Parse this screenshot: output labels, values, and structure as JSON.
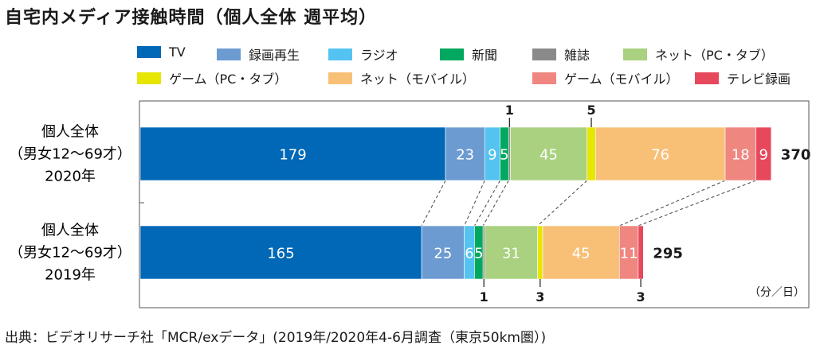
{
  "title": "自宅内メディア接触時間（個人全体 週平均）",
  "unit": "（分／日）",
  "source": "出典：ビデオリサーチ社「MCR/exデータ」(2019年/2020年4-6月調査（東京50km圏）)",
  "legend": [
    {
      "name": "TV",
      "color": "#0068b7"
    },
    {
      "name": "録画再生",
      "color": "#6c9bd2"
    },
    {
      "name": "ラジオ",
      "color": "#55c3f1"
    },
    {
      "name": "新聞",
      "color": "#00a95f"
    },
    {
      "name": "雑誌",
      "color": "#8a8a8a"
    },
    {
      "name": "ネット（PC・タブ）",
      "color": "#a9d17f"
    },
    {
      "name": "ゲーム（PC・タブ）",
      "color": "#e6e600"
    },
    {
      "name": "ネット（モバイル）",
      "color": "#f8c077"
    },
    {
      "name": "ゲーム（モバイル）",
      "color": "#ef8680"
    },
    {
      "name": "テレビ録画",
      "color": "#e8485c"
    }
  ],
  "chart_data": {
    "type": "bar",
    "orientation": "horizontal",
    "stacked": true,
    "categories": [
      [
        "個人全体",
        "（男女12〜69才）",
        "2020年"
      ],
      [
        "個人全体",
        "（男女12〜69才）",
        "2019年"
      ]
    ],
    "series": [
      {
        "name": "TV",
        "values": [
          179,
          165
        ],
        "labels": [
          "179",
          "165"
        ]
      },
      {
        "name": "録画再生",
        "values": [
          23,
          25
        ],
        "labels": [
          "23",
          "25"
        ]
      },
      {
        "name": "ラジオ",
        "values": [
          9,
          6
        ],
        "labels": [
          "9",
          "6"
        ]
      },
      {
        "name": "新聞",
        "values": [
          5,
          5
        ],
        "labels": [
          "5",
          "5"
        ]
      },
      {
        "name": "雑誌",
        "values": [
          1,
          1
        ],
        "labels": [
          "1",
          "1"
        ]
      },
      {
        "name": "ネット（PC・タブ）",
        "values": [
          45,
          31
        ],
        "labels": [
          "45",
          "31"
        ]
      },
      {
        "name": "ゲーム（PC・タブ）",
        "values": [
          5,
          3
        ],
        "labels": [
          "5",
          "3"
        ]
      },
      {
        "name": "ネット（モバイル）",
        "values": [
          76,
          45
        ],
        "labels": [
          "76",
          "45"
        ]
      },
      {
        "name": "ゲーム（モバイル）",
        "values": [
          18,
          11
        ],
        "labels": [
          "18",
          "11"
        ]
      },
      {
        "name": "テレビ録画",
        "values": [
          9,
          3
        ],
        "labels": [
          "9",
          "3"
        ]
      }
    ],
    "totals": [
      "370",
      "295"
    ],
    "callouts": [
      {
        "row": 0,
        "series": 4,
        "text": "1",
        "position": "top"
      },
      {
        "row": 0,
        "series": 6,
        "text": "5",
        "position": "top"
      },
      {
        "row": 1,
        "series": 4,
        "text": "1",
        "position": "bottom"
      },
      {
        "row": 1,
        "series": 6,
        "text": "3",
        "position": "bottom"
      },
      {
        "row": 1,
        "series": 9,
        "text": "3",
        "position": "bottom"
      }
    ],
    "connector_series": [
      0,
      1,
      2,
      3,
      5,
      7,
      8
    ]
  }
}
